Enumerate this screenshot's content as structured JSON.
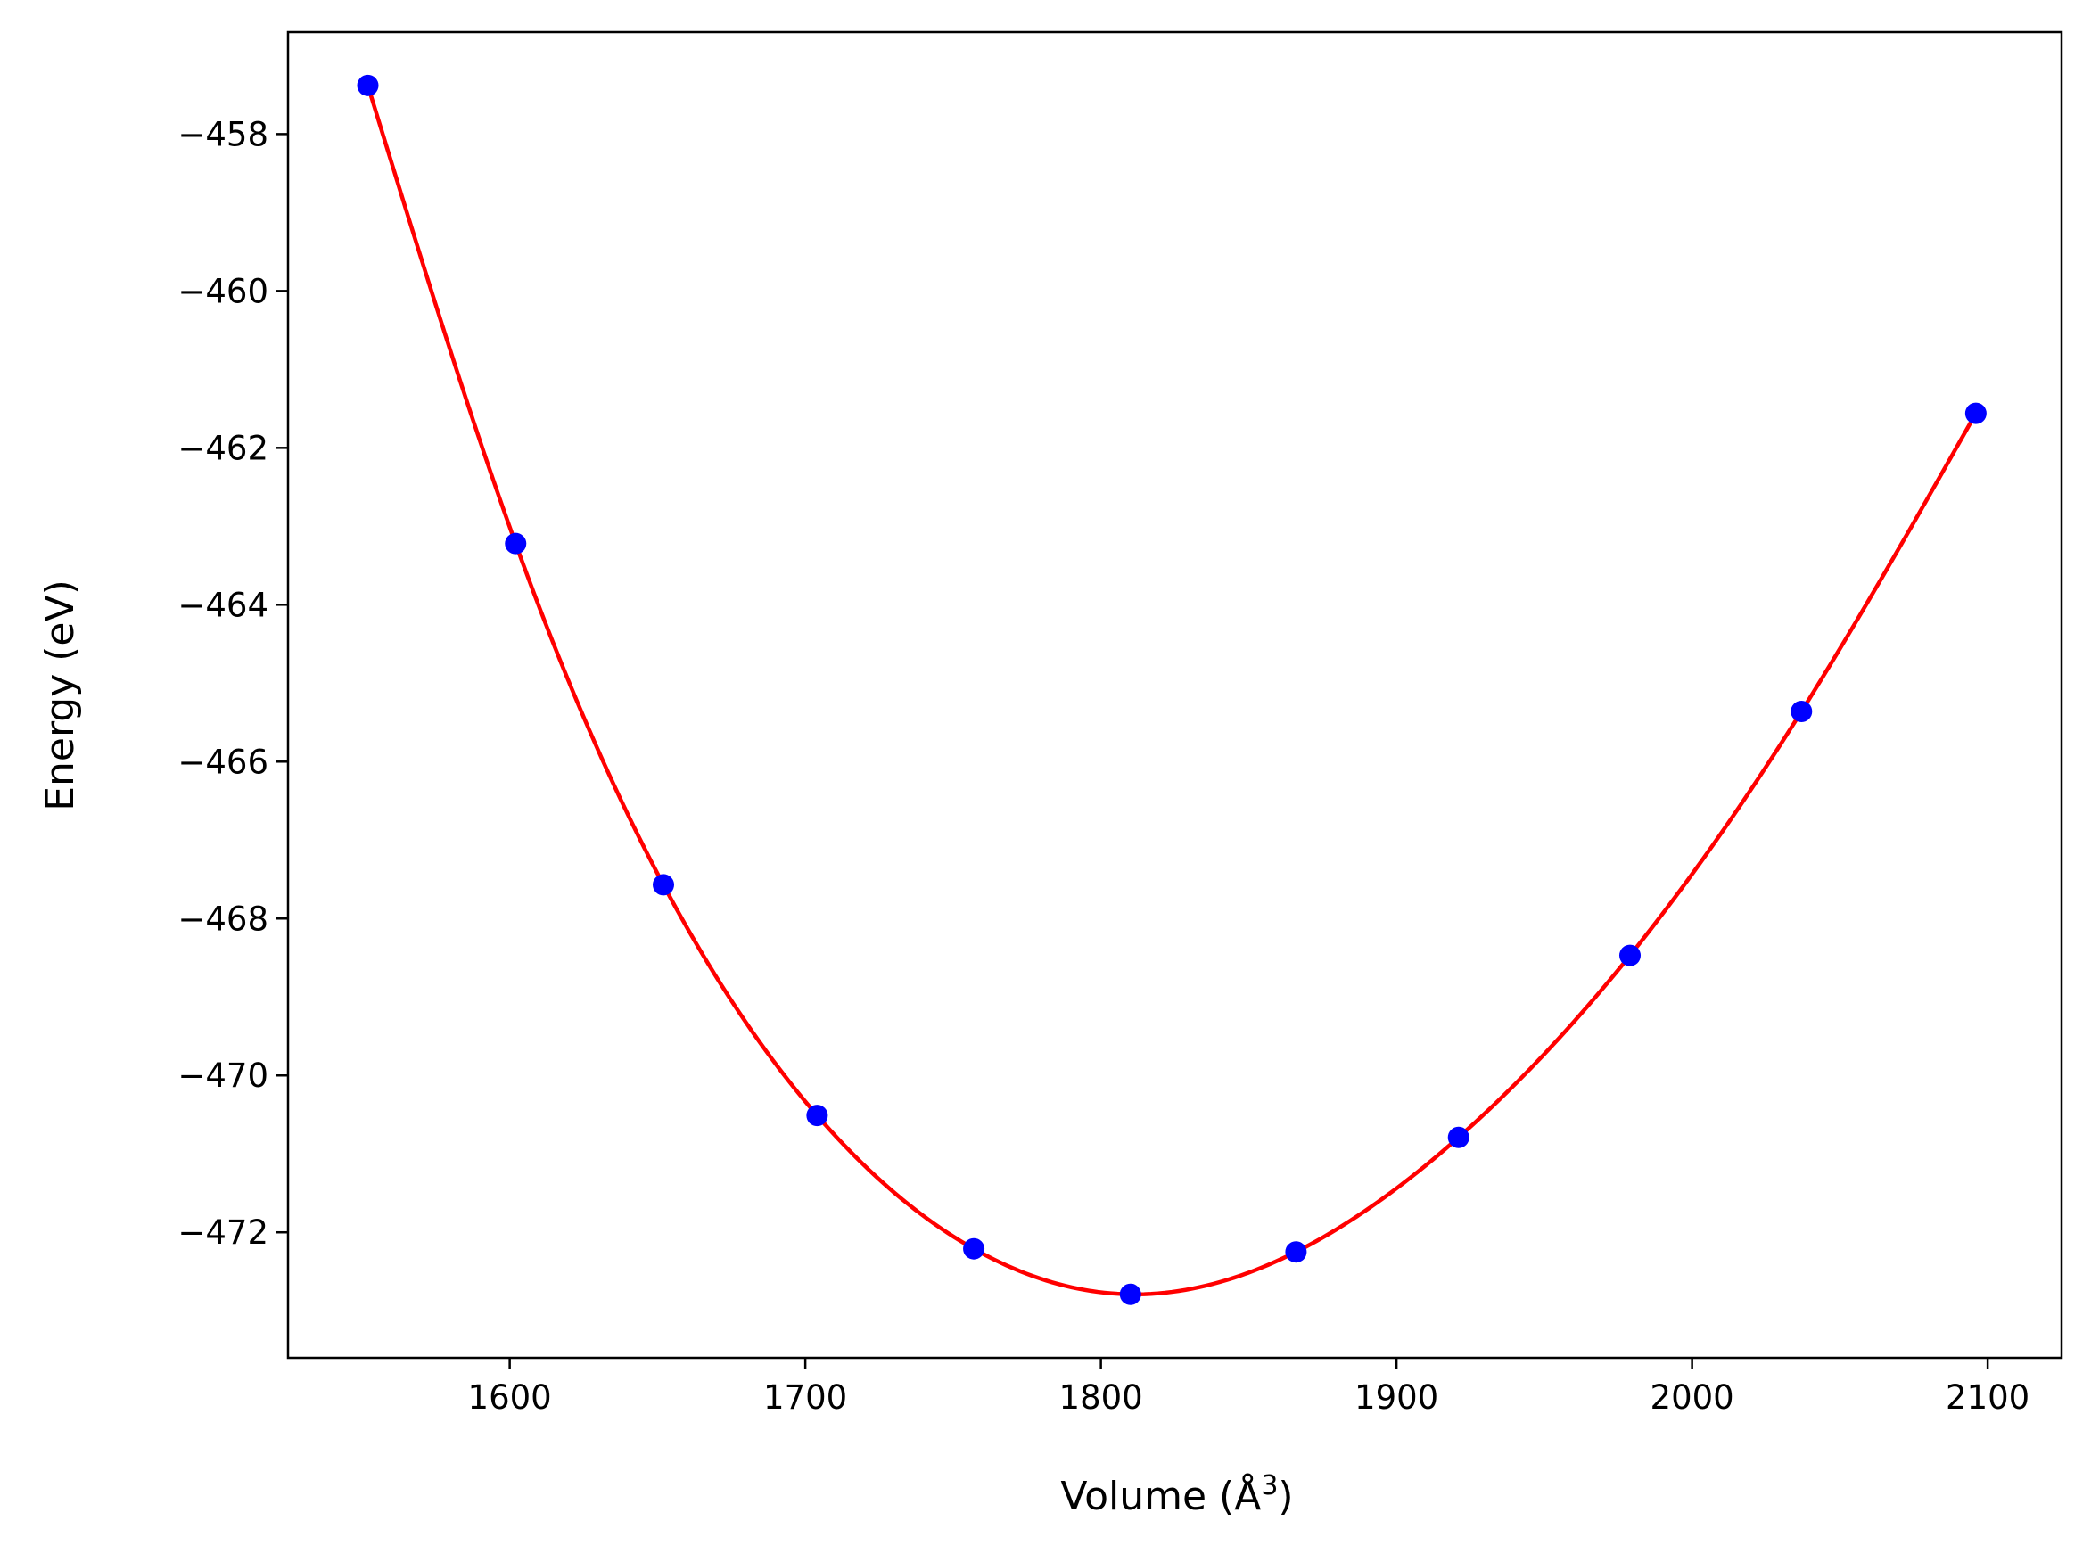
{
  "chart_data": {
    "type": "scatter",
    "title": "",
    "xlabel": "Volume (Å",
    "xlabel_sup": "3",
    "xlabel_close": ")",
    "ylabel": "Energy (eV)",
    "xlim": [
      1525,
      2125
    ],
    "ylim": [
      -473.6,
      -456.7
    ],
    "xticks": [
      1600,
      1700,
      1800,
      1900,
      2000,
      2100
    ],
    "xtick_labels": [
      "1600",
      "1700",
      "1800",
      "1900",
      "2000",
      "2100"
    ],
    "yticks": [
      -458,
      -460,
      -462,
      -464,
      -466,
      -468,
      -470,
      -472
    ],
    "ytick_labels": [
      "−458",
      "−460",
      "−462",
      "−464",
      "−466",
      "−468",
      "−470",
      "−472"
    ],
    "grid": false,
    "series": [
      {
        "kind": "points",
        "color": "#0000ff",
        "x": [
          1552,
          1602,
          1652,
          1704,
          1757,
          1810,
          1866,
          1921,
          1979,
          2037,
          2096
        ],
        "y": [
          -457.38,
          -463.22,
          -467.57,
          -470.51,
          -472.21,
          -472.79,
          -472.25,
          -470.79,
          -468.47,
          -465.36,
          -461.56
        ]
      },
      {
        "kind": "fit-curve",
        "color": "#ff0000",
        "x": [
          1552,
          1602,
          1652,
          1704,
          1757,
          1810,
          1866,
          1921,
          1979,
          2037,
          2096
        ],
        "y": [
          -457.38,
          -463.22,
          -467.57,
          -470.51,
          -472.21,
          -472.79,
          -472.25,
          -470.79,
          -468.47,
          -465.36,
          -461.56
        ]
      }
    ]
  }
}
